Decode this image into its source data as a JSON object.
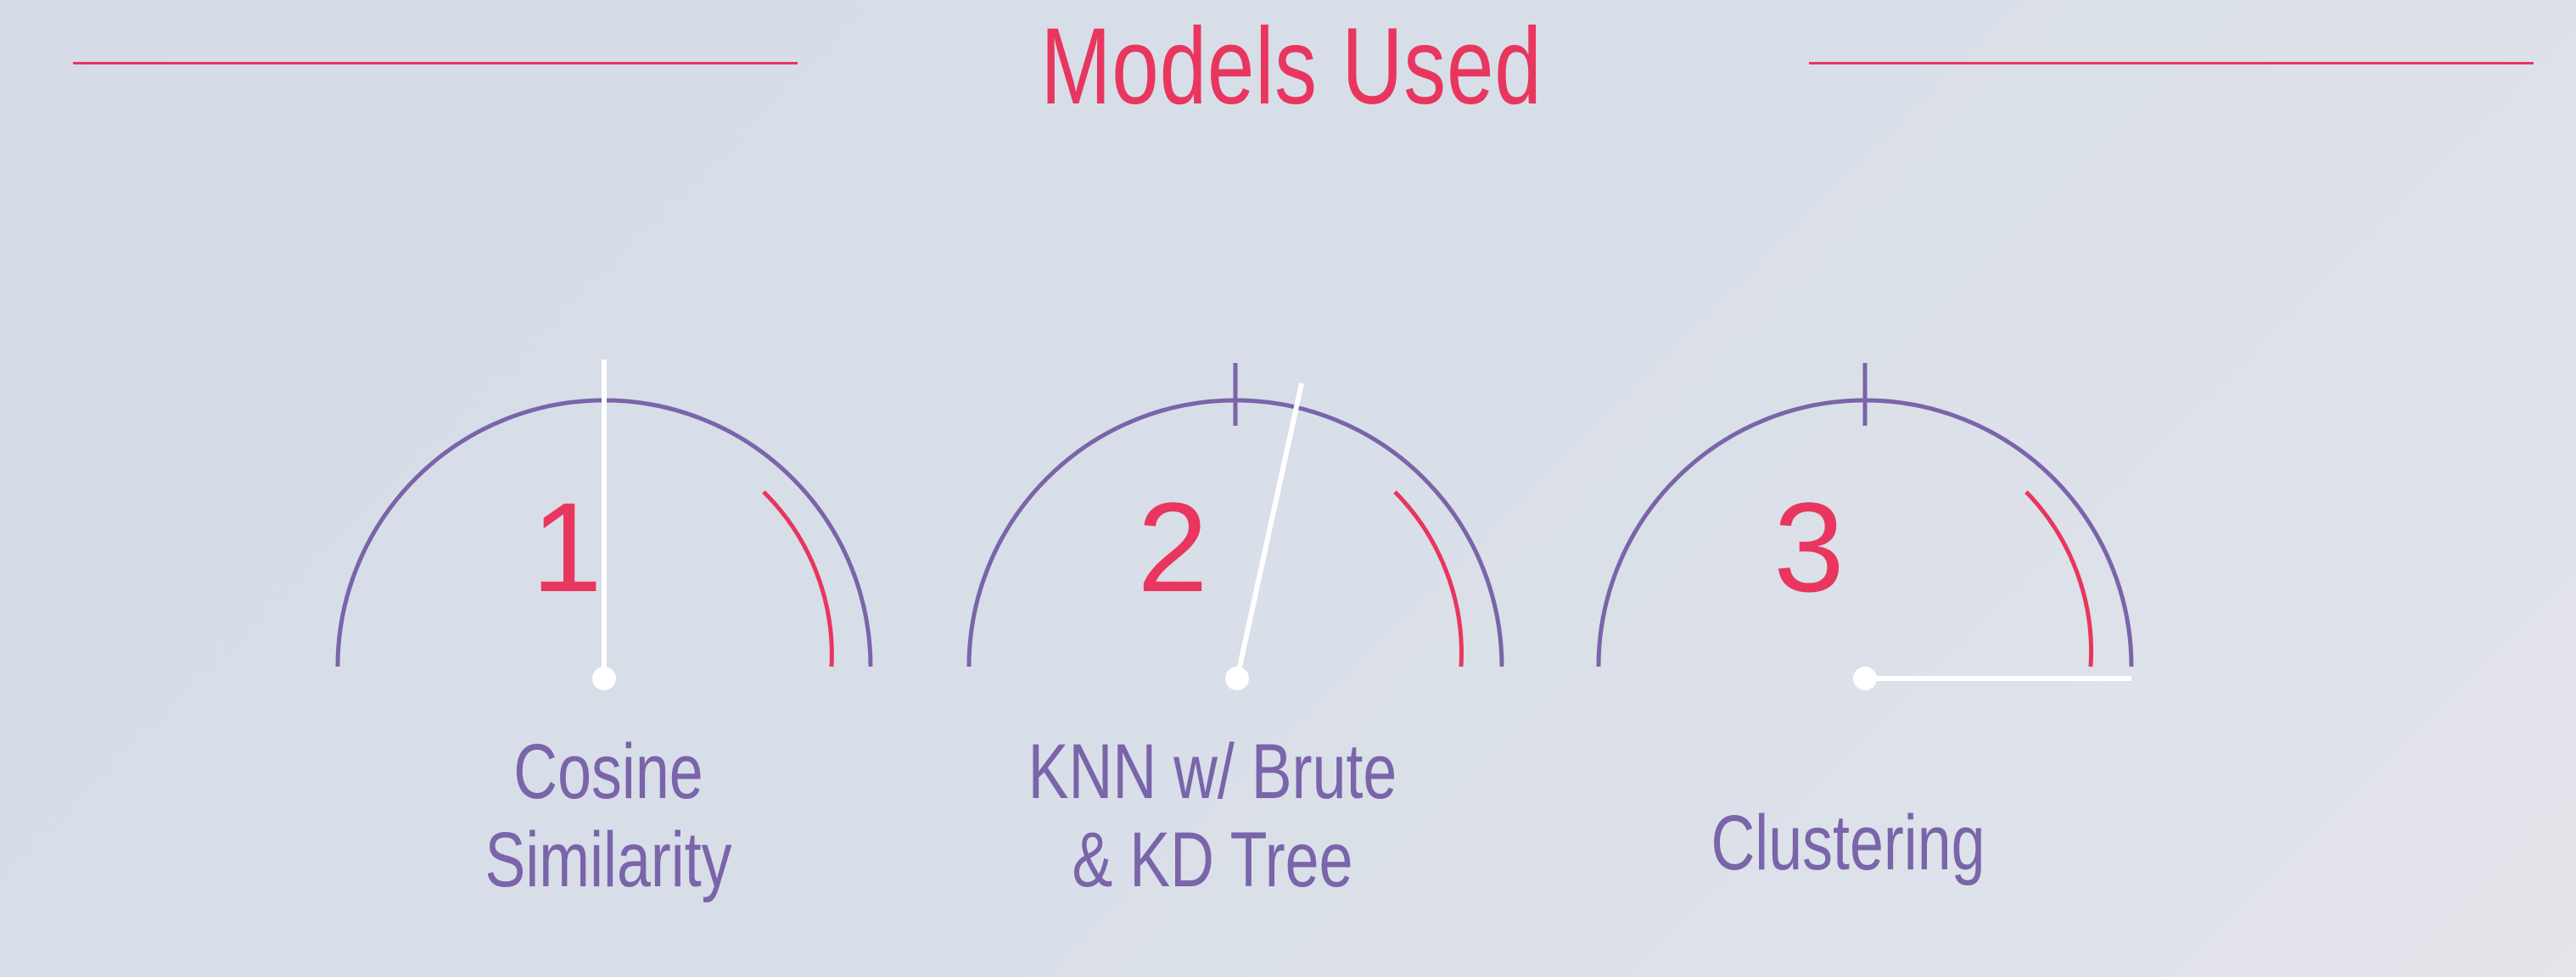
{
  "title": "Models Used",
  "colors": {
    "accent": "#e8365f",
    "gauge": "#7a64aa",
    "needle": "#ffffff"
  },
  "gauges": [
    {
      "number": "1",
      "label_lines": [
        "Cosine",
        "Similarity"
      ],
      "needle_level": 0.5
    },
    {
      "number": "2",
      "label_lines": [
        "KNN w/ Brute",
        "& KD Tree"
      ],
      "needle_level": 0.57
    },
    {
      "number": "3",
      "label_lines": [
        "Clustering"
      ],
      "needle_level": 1.0
    }
  ]
}
